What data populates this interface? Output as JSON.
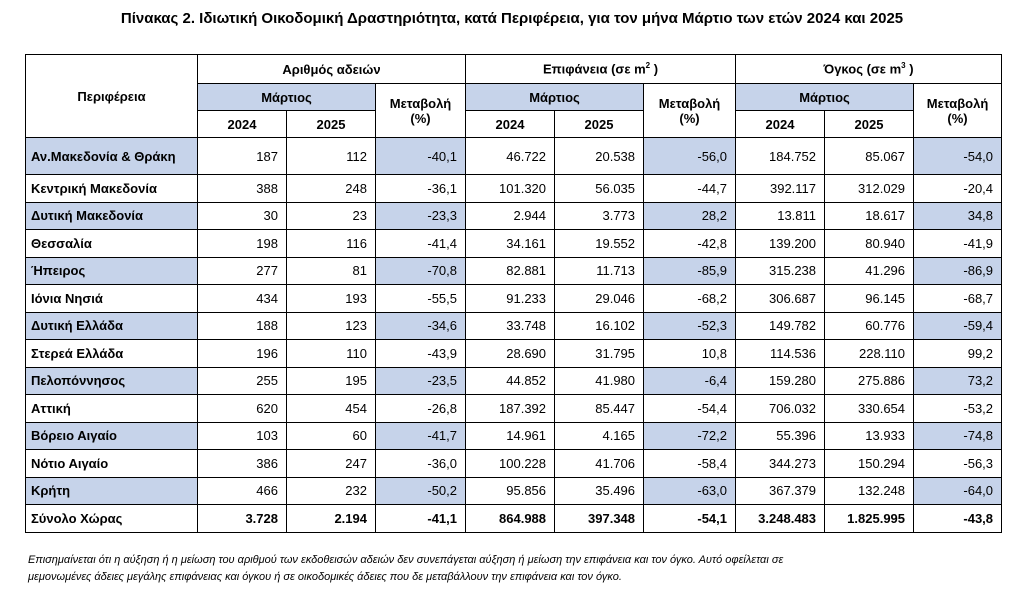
{
  "title": "Πίνακας 2. Ιδιωτική Οικοδομική Δραστηριότητα, κατά  Περιφέρεια, για τον μήνα Μάρτιο των ετών 2024 και 2025",
  "header": {
    "region": "Περιφέρεια",
    "permits": "Αριθμός αδειών",
    "area": "Επιφάνεια (σε m",
    "area_sup": "2",
    "area_tail": " )",
    "volume": "Όγκος (σε m",
    "volume_sup": "3",
    "volume_tail": " )",
    "month": "Μάρτιος",
    "change": "Μεταβολή",
    "change_unit": "(%)",
    "y1": "2024",
    "y2": "2025"
  },
  "rows": [
    {
      "name": "Αν.Μακεδονία & Θράκη",
      "v": [
        "187",
        "112",
        "-40,1",
        "46.722",
        "20.538",
        "-56,0",
        "184.752",
        "85.067",
        "-54,0"
      ]
    },
    {
      "name": "Κεντρική Μακεδονία",
      "v": [
        "388",
        "248",
        "-36,1",
        "101.320",
        "56.035",
        "-44,7",
        "392.117",
        "312.029",
        "-20,4"
      ]
    },
    {
      "name": "Δυτική Μακεδονία",
      "v": [
        "30",
        "23",
        "-23,3",
        "2.944",
        "3.773",
        "28,2",
        "13.811",
        "18.617",
        "34,8"
      ]
    },
    {
      "name": "Θεσσαλία",
      "v": [
        "198",
        "116",
        "-41,4",
        "34.161",
        "19.552",
        "-42,8",
        "139.200",
        "80.940",
        "-41,9"
      ]
    },
    {
      "name": "Ήπειρος",
      "v": [
        "277",
        "81",
        "-70,8",
        "82.881",
        "11.713",
        "-85,9",
        "315.238",
        "41.296",
        "-86,9"
      ]
    },
    {
      "name": "Ιόνια Νησιά",
      "v": [
        "434",
        "193",
        "-55,5",
        "91.233",
        "29.046",
        "-68,2",
        "306.687",
        "96.145",
        "-68,7"
      ]
    },
    {
      "name": "Δυτική Ελλάδα",
      "v": [
        "188",
        "123",
        "-34,6",
        "33.748",
        "16.102",
        "-52,3",
        "149.782",
        "60.776",
        "-59,4"
      ]
    },
    {
      "name": "Στερεά Ελλάδα",
      "v": [
        "196",
        "110",
        "-43,9",
        "28.690",
        "31.795",
        "10,8",
        "114.536",
        "228.110",
        "99,2"
      ]
    },
    {
      "name": "Πελοπόννησος",
      "v": [
        "255",
        "195",
        "-23,5",
        "44.852",
        "41.980",
        "-6,4",
        "159.280",
        "275.886",
        "73,2"
      ]
    },
    {
      "name": "Αττική",
      "v": [
        "620",
        "454",
        "-26,8",
        "187.392",
        "85.447",
        "-54,4",
        "706.032",
        "330.654",
        "-53,2"
      ]
    },
    {
      "name": "Βόρειο Αιγαίο",
      "v": [
        "103",
        "60",
        "-41,7",
        "14.961",
        "4.165",
        "-72,2",
        "55.396",
        "13.933",
        "-74,8"
      ]
    },
    {
      "name": "Νότιο Αιγαίο",
      "v": [
        "386",
        "247",
        "-36,0",
        "100.228",
        "41.706",
        "-58,4",
        "344.273",
        "150.294",
        "-56,3"
      ]
    },
    {
      "name": "Κρήτη",
      "v": [
        "466",
        "232",
        "-50,2",
        "95.856",
        "35.496",
        "-63,0",
        "367.379",
        "132.248",
        "-64,0"
      ]
    },
    {
      "name": "Σύνολο Χώρας",
      "v": [
        "3.728",
        "2.194",
        "-41,1",
        "864.988",
        "397.348",
        "-54,1",
        "3.248.483",
        "1.825.995",
        "-43,8"
      ]
    }
  ],
  "note": [
    "Επισημαίνεται ότι η αύξηση ή η μείωση του αριθμού των εκδοθεισών αδειών δεν συνεπάγεται αύξηση ή μείωση την επιφάνεια και τον όγκο. Αυτό οφείλεται σε",
    "μεμονωμένες άδειες μεγάλης επιφάνειας και όγκου ή σε οικοδομικές άδειες που δε μεταβάλλουν την επιφάνεια και τον όγκο."
  ]
}
